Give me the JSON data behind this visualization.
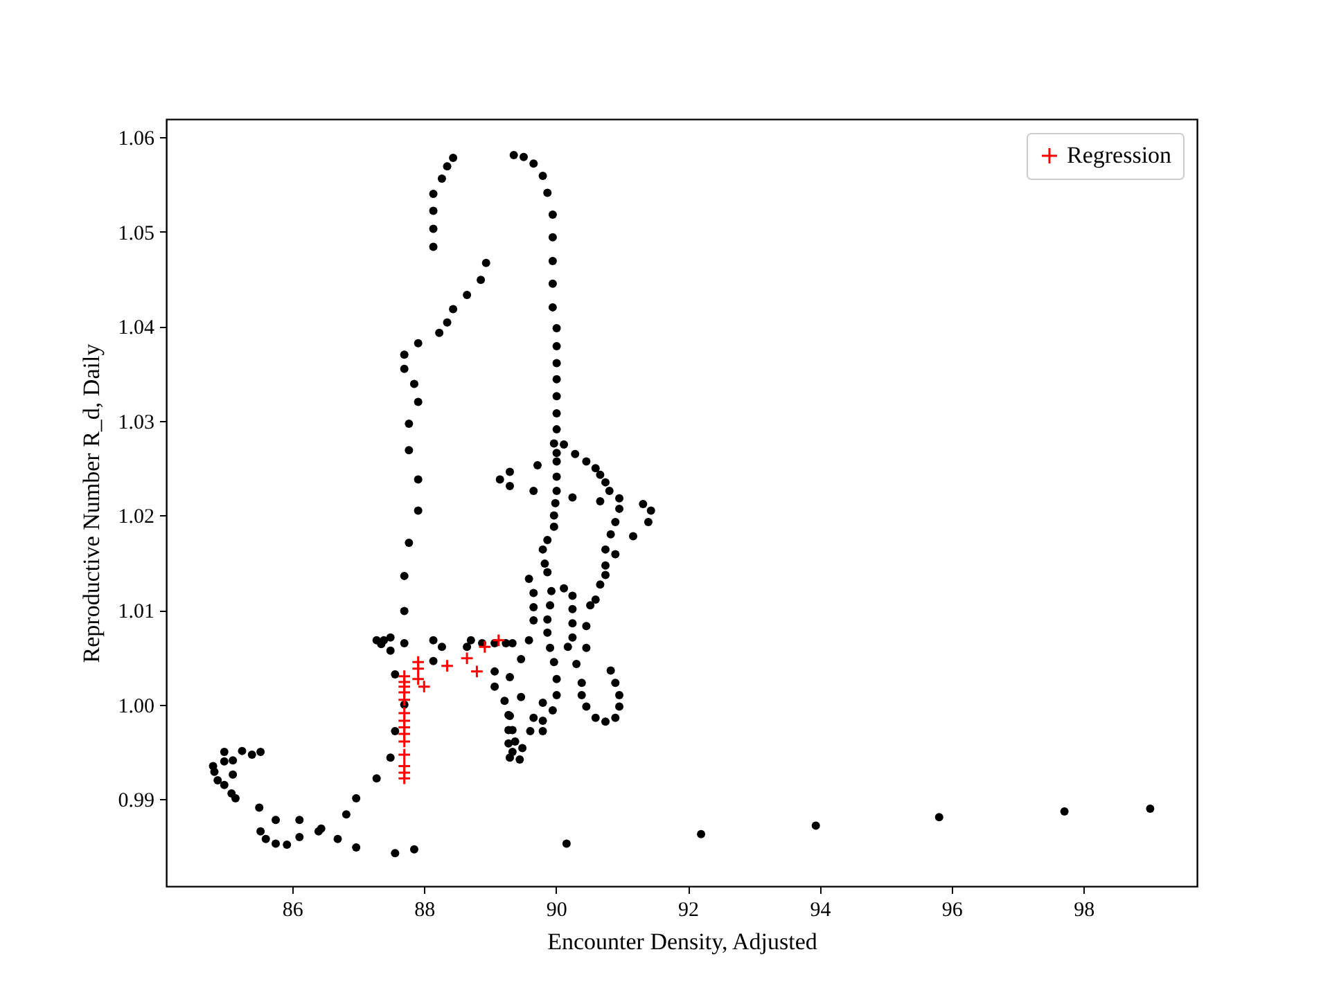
{
  "chart_data": {
    "type": "scatter",
    "xlabel": "Encounter Density, Adjusted",
    "ylabel": "Reproductive Number R_d, Daily",
    "xlim": [
      84.09,
      99.72
    ],
    "ylim": [
      0.9808,
      1.0619
    ],
    "xticks": [
      86,
      88,
      90,
      92,
      94,
      96,
      98
    ],
    "yticks": [
      0.99,
      {
        "value": 1.0,
        "label": "1.00"
      },
      1.01,
      1.02,
      1.03,
      1.04,
      1.05,
      1.06
    ],
    "grid": false,
    "legend": "top right",
    "series": [
      {
        "color": "#000000",
        "marker": "circle",
        "x": [
          88.44,
          88.35,
          88.27,
          88.14,
          88.14,
          88.14,
          88.14,
          88.94,
          88.86,
          88.65,
          88.44,
          88.35,
          88.23,
          87.91,
          87.7,
          87.7,
          87.85,
          87.91,
          87.77,
          87.77,
          87.91,
          87.91,
          87.77,
          87.7,
          87.7,
          87.7,
          87.28,
          87.39,
          87.49,
          87.49,
          87.35,
          87.56,
          87.7,
          87.56,
          87.49,
          87.28,
          86.97,
          86.82,
          86.69,
          86.97,
          87.56,
          87.85,
          86.11,
          86.11,
          85.92,
          85.75,
          85.6,
          85.52,
          85.75,
          85.5,
          86.44,
          86.4,
          85.14,
          85.08,
          84.97,
          84.87,
          84.82,
          84.8,
          84.97,
          84.97,
          85.1,
          85.1,
          85.24,
          85.39,
          85.52,
          88.14,
          88.27,
          88.14,
          88.71,
          88.65,
          88.88,
          89.07,
          89.24,
          89.07,
          89.07,
          89.22,
          89.28,
          89.28,
          89.28,
          89.3,
          89.36,
          89.51,
          89.66,
          89.8,
          89.87,
          89.95,
          89.95,
          89.95,
          89.95,
          89.95,
          90.01,
          90.01,
          90.01,
          90.01,
          90.01,
          90.01,
          90.01,
          89.97,
          90.12,
          90.29,
          90.46,
          90.6,
          90.67,
          90.75,
          90.81,
          90.96,
          91.32,
          90.01,
          90.01,
          90.01,
          90.01,
          89.72,
          89.15,
          89.3,
          89.3,
          89.66,
          90.25,
          90.67,
          90.96,
          91.44,
          91.4,
          91.17,
          90.9,
          90.83,
          90.75,
          90.9,
          90.75,
          90.75,
          90.67,
          90.6,
          90.52,
          90.46,
          90.46,
          90.31,
          90.39,
          90.39,
          90.46,
          90.6,
          90.75,
          90.9,
          90.96,
          90.96,
          90.9,
          90.83,
          89.99,
          89.97,
          89.97,
          89.87,
          89.8,
          89.83,
          89.87,
          89.93,
          90.12,
          90.25,
          90.25,
          90.25,
          90.25,
          90.18,
          89.91,
          89.87,
          89.87,
          89.91,
          89.97,
          90.01,
          90.01,
          89.95,
          89.8,
          89.8,
          89.8,
          89.66,
          89.61,
          89.47,
          89.3,
          89.3,
          89.34,
          89.38,
          89.34,
          89.45,
          89.49,
          89.59,
          89.66,
          89.66,
          89.66,
          89.59,
          89.47,
          89.34,
          90.16,
          92.2,
          93.94,
          95.81,
          97.71,
          99.01
        ],
        "values": [
          1.0578,
          1.0569,
          1.0556,
          1.054,
          1.0522,
          1.0503,
          1.0484,
          1.0467,
          1.0449,
          1.0433,
          1.0418,
          1.0404,
          1.0393,
          1.0382,
          1.037,
          1.0355,
          1.0339,
          1.032,
          1.0297,
          1.0269,
          1.0238,
          1.0205,
          1.0171,
          1.0136,
          1.0099,
          1.0065,
          1.0068,
          1.0068,
          1.0071,
          1.0057,
          1.0064,
          1.0032,
          1.0,
          0.9972,
          0.9944,
          0.9922,
          0.9901,
          0.9884,
          0.9858,
          0.9849,
          0.9843,
          0.9847,
          0.9878,
          0.986,
          0.9852,
          0.9853,
          0.9858,
          0.9866,
          0.9878,
          0.9891,
          0.9869,
          0.9866,
          0.9901,
          0.9906,
          0.9915,
          0.992,
          0.9929,
          0.9935,
          0.995,
          0.994,
          0.9941,
          0.9926,
          0.9951,
          0.9947,
          0.995,
          1.0068,
          1.0061,
          1.0046,
          1.0068,
          1.0061,
          1.0065,
          1.0065,
          1.0065,
          1.0035,
          1.0019,
          1.0004,
          0.9989,
          0.9973,
          0.9959,
          0.9944,
          1.0581,
          1.0579,
          1.0572,
          1.0559,
          1.0541,
          1.0518,
          1.0494,
          1.0469,
          1.0445,
          1.042,
          1.0398,
          1.0379,
          1.0361,
          1.0344,
          1.0326,
          1.0308,
          1.0291,
          1.0276,
          1.0275,
          1.0265,
          1.0257,
          1.025,
          1.0243,
          1.0235,
          1.0226,
          1.0218,
          1.0212,
          1.0266,
          1.0257,
          1.0241,
          1.0226,
          1.0253,
          1.0238,
          1.0246,
          1.0231,
          1.0226,
          1.0219,
          1.0215,
          1.0207,
          1.0205,
          1.0193,
          1.0178,
          1.0193,
          1.018,
          1.0164,
          1.0159,
          1.0147,
          1.0137,
          1.0127,
          1.0111,
          1.0105,
          1.0083,
          1.006,
          1.0043,
          1.0023,
          1.001,
          0.9998,
          0.9986,
          0.9982,
          0.9986,
          0.9998,
          1.001,
          1.0023,
          1.0036,
          1.0213,
          1.02,
          1.0188,
          1.0174,
          1.0164,
          1.0149,
          1.014,
          1.012,
          1.0123,
          1.0115,
          1.0101,
          1.0086,
          1.0071,
          1.0061,
          1.0105,
          1.009,
          1.0076,
          1.006,
          1.0045,
          1.0027,
          1.001,
          0.9994,
          1.0002,
          0.9983,
          0.9972,
          0.9986,
          0.9972,
          1.0008,
          1.0029,
          0.9988,
          0.9973,
          0.9961,
          0.995,
          0.9942,
          0.9954,
          1.0133,
          1.0118,
          1.0103,
          1.0089,
          1.0068,
          1.0048,
          1.0065,
          0.9853,
          0.9863,
          0.9872,
          0.9881,
          0.9887,
          0.989
        ]
      },
      {
        "name": "Regression",
        "color": "#ff0000",
        "marker": "cross",
        "x": [
          87.7,
          87.7,
          87.7,
          87.7,
          87.7,
          87.7,
          87.7,
          87.7,
          87.7,
          87.7,
          87.7,
          87.7,
          87.7,
          87.7,
          87.91,
          87.91,
          87.91,
          88.0,
          88.35,
          88.65,
          88.8,
          88.92,
          89.13
        ],
        "values": [
          1.003,
          1.0024,
          1.0019,
          1.0013,
          1.0005,
          0.9991,
          0.9983,
          0.9976,
          0.9969,
          0.9961,
          0.9947,
          0.9935,
          0.9928,
          0.9922,
          1.0045,
          1.0038,
          1.0027,
          1.0019,
          1.0041,
          1.0049,
          1.0035,
          1.0061,
          1.0068
        ]
      }
    ]
  }
}
